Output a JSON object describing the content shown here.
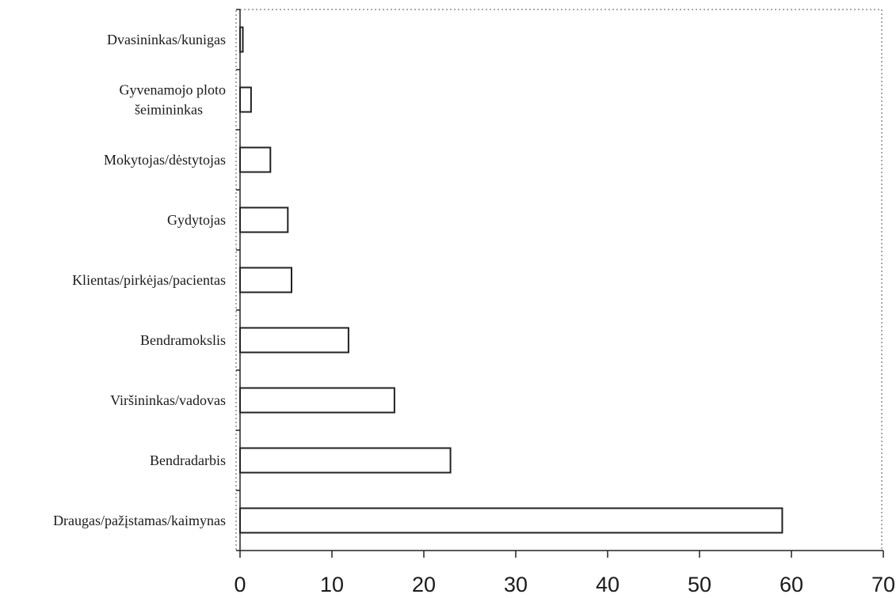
{
  "chart_data": {
    "type": "bar",
    "orientation": "horizontal",
    "title": "",
    "xlabel": "",
    "ylabel": "",
    "xlim": [
      0,
      70
    ],
    "xticks": [
      0,
      10,
      20,
      30,
      40,
      50,
      60,
      70
    ],
    "grid": false,
    "categories": [
      {
        "label": [
          "Dvasininkas/kunigas"
        ],
        "value": 0.3
      },
      {
        "label": [
          "Gyvenamojo ploto",
          "šeimininkas"
        ],
        "value": 1.2
      },
      {
        "label": [
          "Mokytojas/dėstytojas"
        ],
        "value": 3.3
      },
      {
        "label": [
          "Gydytojas"
        ],
        "value": 5.2
      },
      {
        "label": [
          "Klientas/pirkėjas/pacientas"
        ],
        "value": 5.6
      },
      {
        "label": [
          "Bendramokslis"
        ],
        "value": 11.8
      },
      {
        "label": [
          "Viršininkas/vadovas"
        ],
        "value": 16.8
      },
      {
        "label": [
          "Bendradarbis"
        ],
        "value": 22.9
      },
      {
        "label": [
          "Draugas/pažįstamas/kaimynas"
        ],
        "value": 59.0
      }
    ],
    "colors": {
      "bar_fill": "#ffffff",
      "bar_stroke": "#222222"
    }
  }
}
